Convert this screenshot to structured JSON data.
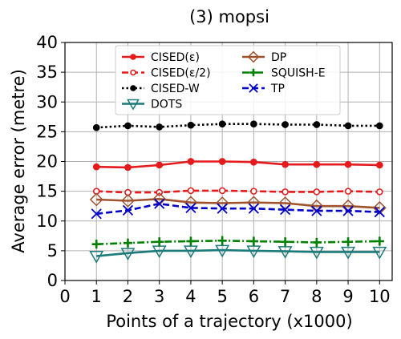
{
  "chart_data": {
    "type": "line",
    "title": "(3) mopsi",
    "xlabel": "Points of a trajectory (x1000)",
    "ylabel": "Average error (metre)",
    "xlim": [
      0,
      10.4
    ],
    "ylim": [
      0,
      40
    ],
    "xticks": [
      "0",
      "1",
      "2",
      "3",
      "4",
      "5",
      "6",
      "7",
      "8",
      "9",
      "10"
    ],
    "yticks": [
      "0",
      "5",
      "10",
      "15",
      "20",
      "25",
      "30",
      "35",
      "40"
    ],
    "grid": true,
    "legend_position": "top-center",
    "legend_columns": 2,
    "x": [
      1,
      2,
      3,
      4,
      5,
      6,
      7,
      8,
      9,
      10
    ],
    "series": [
      {
        "name": "CISED(ε)",
        "color": "#e41a1c",
        "dash": "solid",
        "marker": "filled-circle",
        "values": [
          19.1,
          19.0,
          19.4,
          20.0,
          20.0,
          19.9,
          19.5,
          19.5,
          19.5,
          19.4
        ]
      },
      {
        "name": "CISED(ε/2)",
        "color": "#e41a1c",
        "dash": "dashed",
        "marker": "open-circle",
        "values": [
          15.0,
          14.8,
          14.8,
          15.1,
          15.1,
          15.0,
          14.9,
          14.9,
          15.0,
          14.9
        ]
      },
      {
        "name": "CISED-W",
        "color": "#000000",
        "dash": "dotted",
        "marker": "filled-circle",
        "values": [
          25.7,
          26.0,
          25.8,
          26.1,
          26.3,
          26.3,
          26.2,
          26.2,
          26.0,
          26.0
        ]
      },
      {
        "name": "DOTS",
        "color": "#1b7a7a",
        "dash": "solid",
        "marker": "triangle-down",
        "values": [
          4.1,
          4.6,
          5.0,
          5.0,
          5.1,
          5.0,
          4.9,
          4.8,
          4.8,
          4.8
        ]
      },
      {
        "name": "DP",
        "color": "#a0522d",
        "dash": "solid",
        "marker": "diamond",
        "values": [
          13.6,
          13.4,
          13.7,
          13.1,
          13.0,
          13.1,
          13.0,
          12.5,
          12.5,
          12.2
        ]
      },
      {
        "name": "SQUISH-E",
        "color": "#008000",
        "dash": "dashdot",
        "marker": "plus",
        "values": [
          6.1,
          6.3,
          6.5,
          6.6,
          6.7,
          6.6,
          6.5,
          6.4,
          6.5,
          6.6
        ]
      },
      {
        "name": "TP",
        "color": "#0000cc",
        "dash": "dashed",
        "marker": "x",
        "values": [
          11.2,
          11.8,
          12.9,
          12.2,
          12.1,
          12.1,
          11.9,
          11.7,
          11.7,
          11.5
        ]
      }
    ]
  }
}
